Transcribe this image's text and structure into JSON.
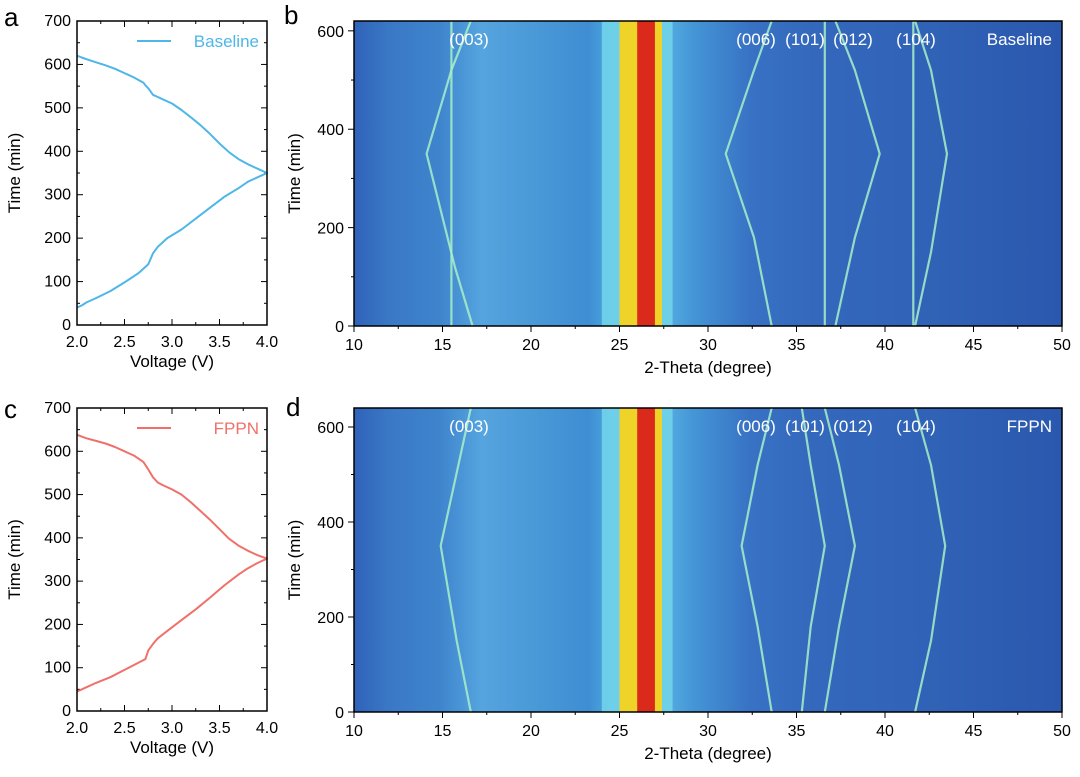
{
  "figure": {
    "panels": [
      {
        "letter": "a",
        "type": "line",
        "legend": "Baseline",
        "color": "#4fb6e8",
        "xlabel": "Voltage (V)",
        "ylabel": "Time (min)",
        "xlim": [
          2.0,
          4.0
        ],
        "ylim": [
          0,
          700
        ],
        "xticks": [
          "2.0",
          "2.5",
          "3.0",
          "3.5",
          "4.0"
        ],
        "yticks": [
          "0",
          "100",
          "200",
          "300",
          "400",
          "500",
          "600",
          "700"
        ]
      },
      {
        "letter": "b",
        "type": "heatmap",
        "title": "Baseline",
        "xlabel": "2-Theta (degree)",
        "ylabel": "Time (min)",
        "xticks": [
          "10",
          "15",
          "20",
          "25",
          "30",
          "35",
          "40",
          "45",
          "50"
        ],
        "yticks": [
          "0",
          "200",
          "400",
          "600"
        ],
        "peak_labels": [
          "(003)",
          "(006)",
          "(101)",
          "(012)",
          "(104)"
        ]
      },
      {
        "letter": "c",
        "type": "line",
        "legend": "FPPN",
        "color": "#f0706a",
        "xlabel": "Voltage (V)",
        "ylabel": "Time (min)",
        "xlim": [
          2.0,
          4.0
        ],
        "ylim": [
          0,
          700
        ],
        "xticks": [
          "2.0",
          "2.5",
          "3.0",
          "3.5",
          "4.0"
        ],
        "yticks": [
          "0",
          "100",
          "200",
          "300",
          "400",
          "500",
          "600",
          "700"
        ]
      },
      {
        "letter": "d",
        "type": "heatmap",
        "title": "FPPN",
        "xlabel": "2-Theta (degree)",
        "ylabel": "Time (min)",
        "xticks": [
          "10",
          "15",
          "20",
          "25",
          "30",
          "35",
          "40",
          "45",
          "50"
        ],
        "yticks": [
          "0",
          "200",
          "400",
          "600"
        ],
        "peak_labels": [
          "(003)",
          "(006)",
          "(101)",
          "(012)",
          "(104)"
        ]
      }
    ]
  },
  "chart_data": [
    {
      "type": "line",
      "panel": "a",
      "series": [
        {
          "name": "Baseline",
          "x": [
            2.0,
            2.05,
            2.1,
            2.2,
            2.35,
            2.5,
            2.65,
            2.75,
            2.8,
            2.85,
            2.95,
            3.1,
            3.25,
            3.4,
            3.55,
            3.7,
            3.8,
            3.9,
            4.0,
            3.9,
            3.8,
            3.7,
            3.6,
            3.5,
            3.4,
            3.3,
            3.2,
            3.1,
            3.0,
            2.9,
            2.85,
            2.8,
            2.75,
            2.72,
            2.7,
            2.6,
            2.5,
            2.4,
            2.3,
            2.2,
            2.1,
            2.05,
            2.0
          ],
          "y": [
            40,
            45,
            52,
            62,
            78,
            98,
            120,
            140,
            165,
            180,
            200,
            220,
            245,
            270,
            295,
            315,
            330,
            340,
            350,
            360,
            370,
            382,
            398,
            418,
            440,
            460,
            478,
            495,
            510,
            520,
            525,
            530,
            545,
            552,
            558,
            570,
            580,
            590,
            598,
            605,
            612,
            616,
            620
          ]
        }
      ],
      "xlabel": "Voltage (V)",
      "ylabel": "Time (min)",
      "xlim": [
        2.0,
        4.0
      ],
      "ylim": [
        0,
        700
      ]
    },
    {
      "type": "heatmap",
      "panel": "b",
      "title": "Baseline",
      "xlabel": "2-Theta (degree)",
      "ylabel": "Time (min)",
      "xlim": [
        10,
        50
      ],
      "ylim": [
        0,
        620
      ],
      "peaks": [
        {
          "label": "(003)",
          "path": [
            [
              16.7,
              0
            ],
            [
              15.7,
              120
            ],
            [
              14.1,
              350
            ],
            [
              15.5,
              520
            ],
            [
              16.6,
              620
            ]
          ]
        },
        {
          "label": "(003)",
          "path": [
            [
              15.5,
              0
            ],
            [
              15.5,
              620
            ]
          ]
        },
        {
          "label": "(006)",
          "path": [
            [
              33.6,
              0
            ],
            [
              32.6,
              180
            ],
            [
              31.0,
              350
            ],
            [
              32.6,
              520
            ],
            [
              33.6,
              620
            ]
          ]
        },
        {
          "label": "(101)",
          "path": [
            [
              36.6,
              0
            ],
            [
              36.6,
              620
            ]
          ]
        },
        {
          "label": "(012)",
          "path": [
            [
              37.2,
              0
            ],
            [
              38.3,
              180
            ],
            [
              39.7,
              350
            ],
            [
              38.3,
              520
            ],
            [
              37.2,
              620
            ]
          ]
        },
        {
          "label": "(104)",
          "path": [
            [
              41.7,
              0
            ],
            [
              42.6,
              150
            ],
            [
              43.5,
              350
            ],
            [
              42.6,
              520
            ],
            [
              41.7,
              620
            ]
          ]
        },
        {
          "label": "(104)",
          "path": [
            [
              41.6,
              0
            ],
            [
              41.6,
              620
            ]
          ]
        }
      ],
      "bands": [
        {
          "center": 26.5,
          "halfwidth": 0.5,
          "color": "#d9201a"
        },
        {
          "center": 26.2,
          "halfwidth": 1.2,
          "color": "#f7d31e"
        },
        {
          "center": 26.0,
          "halfwidth": 2.0,
          "color": "#6fd1e8"
        }
      ]
    },
    {
      "type": "line",
      "panel": "c",
      "series": [
        {
          "name": "FPPN",
          "x": [
            2.0,
            2.05,
            2.1,
            2.2,
            2.35,
            2.5,
            2.65,
            2.72,
            2.75,
            2.8,
            2.85,
            2.95,
            3.1,
            3.25,
            3.4,
            3.55,
            3.7,
            3.8,
            3.9,
            4.0,
            3.9,
            3.8,
            3.7,
            3.6,
            3.5,
            3.4,
            3.3,
            3.2,
            3.1,
            3.0,
            2.9,
            2.85,
            2.8,
            2.75,
            2.7,
            2.6,
            2.5,
            2.4,
            2.3,
            2.2,
            2.1,
            2.05,
            2.0
          ],
          "y": [
            45,
            50,
            55,
            65,
            78,
            95,
            112,
            120,
            140,
            155,
            168,
            185,
            210,
            235,
            262,
            290,
            315,
            330,
            342,
            352,
            360,
            370,
            382,
            398,
            420,
            442,
            462,
            482,
            500,
            512,
            522,
            528,
            540,
            558,
            575,
            590,
            600,
            610,
            618,
            624,
            630,
            634,
            638
          ]
        }
      ],
      "xlabel": "Voltage (V)",
      "ylabel": "Time (min)",
      "xlim": [
        2.0,
        4.0
      ],
      "ylim": [
        0,
        700
      ]
    },
    {
      "type": "heatmap",
      "panel": "d",
      "title": "FPPN",
      "xlabel": "2-Theta (degree)",
      "ylabel": "Time (min)",
      "xlim": [
        10,
        50
      ],
      "ylim": [
        0,
        640
      ],
      "peaks": [
        {
          "label": "(003)",
          "path": [
            [
              16.6,
              0
            ],
            [
              15.8,
              150
            ],
            [
              14.9,
              350
            ],
            [
              15.9,
              520
            ],
            [
              16.6,
              640
            ]
          ]
        },
        {
          "label": "(006)",
          "path": [
            [
              33.6,
              0
            ],
            [
              32.8,
              180
            ],
            [
              31.9,
              350
            ],
            [
              32.8,
              520
            ],
            [
              33.6,
              640
            ]
          ]
        },
        {
          "label": "(101)",
          "path": [
            [
              35.3,
              0
            ],
            [
              35.8,
              180
            ],
            [
              36.6,
              350
            ],
            [
              35.8,
              520
            ],
            [
              35.3,
              640
            ]
          ]
        },
        {
          "label": "(012)",
          "path": [
            [
              36.6,
              0
            ],
            [
              37.4,
              180
            ],
            [
              38.3,
              350
            ],
            [
              37.4,
              520
            ],
            [
              36.6,
              640
            ]
          ]
        },
        {
          "label": "(104)",
          "path": [
            [
              41.7,
              0
            ],
            [
              42.6,
              150
            ],
            [
              43.4,
              350
            ],
            [
              42.6,
              520
            ],
            [
              41.7,
              640
            ]
          ]
        }
      ],
      "bands": [
        {
          "center": 26.5,
          "halfwidth": 0.5,
          "color": "#d9201a"
        },
        {
          "center": 26.2,
          "halfwidth": 1.2,
          "color": "#f7d31e"
        },
        {
          "center": 26.0,
          "halfwidth": 2.0,
          "color": "#6fd1e8"
        }
      ]
    }
  ]
}
